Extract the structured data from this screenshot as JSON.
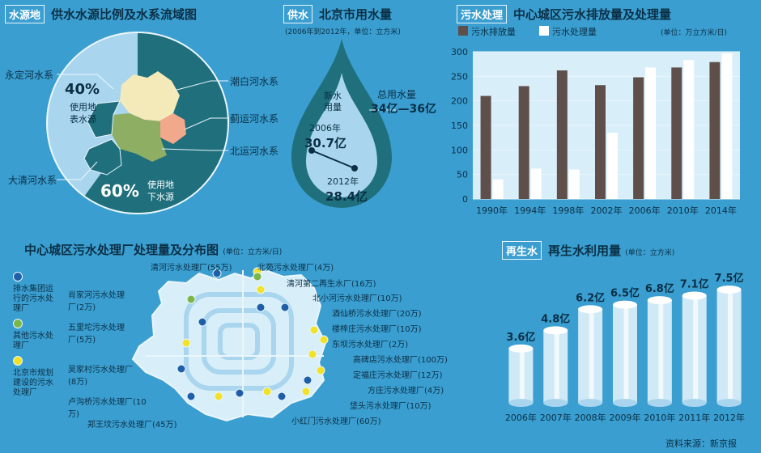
{
  "water_source": {
    "tag": "水源地",
    "title": "供水水源比例及水系流域图",
    "surface": {
      "percent": "40%",
      "label_line1": "使用地",
      "label_line2": "表水源"
    },
    "ground": {
      "percent": "60%",
      "label_line1": "使用地",
      "label_line2": "下水源"
    },
    "rivers": [
      "永定河水系",
      "潮白河水系",
      "蓟运河水系",
      "北运河水系",
      "大清河水系"
    ]
  },
  "water_use": {
    "tag": "供水",
    "title": "北京市用水量",
    "subtitle": "(2006年到2012年，单位：立方米)",
    "new_water_line1": "新水",
    "new_water_line2": "用量",
    "total_label": "总用水量",
    "total_value": "34亿—36亿",
    "points": [
      {
        "year": "2006年",
        "value": "30.7亿"
      },
      {
        "year": "2012年",
        "value": "28.4亿"
      }
    ]
  },
  "sewage": {
    "tag": "污水处理",
    "title": "中心城区污水排放量及处理量",
    "unit": "(单位：万立方米/日)",
    "legend_discharge": "污水排放量",
    "legend_treated": "污水处理量",
    "color_discharge": "#5e4f4a",
    "color_treated": "#ffffff"
  },
  "plants": {
    "title": "中心城区污水处理厂处理量及分布图",
    "unit": "(单位：立方米/日)",
    "legend": [
      {
        "text": "排水集团运行的污水处理厂",
        "color": "#1f5fa8"
      },
      {
        "text": "其他污水处理厂",
        "color": "#7ab648"
      },
      {
        "text": "北京市规划建设的污水处理厂",
        "color": "#f2e227"
      }
    ],
    "left_labels": [
      "肖家河污水处理厂(2万)",
      "五里坨污水处理厂(5万)",
      "吴家村污水处理厂(8万)",
      "卢沟桥污水处理厂(10万)",
      "郑王坟污水处理厂(45万)"
    ],
    "top_labels": [
      "清河污水处理厂(55万)",
      "北苑污水处理厂(4万)",
      "清河第二再生水厂(16万)"
    ],
    "right_labels": [
      "北小河污水处理厂(10万)",
      "酒仙桥污水处理厂(20万)",
      "楼梓庄污水处理厂(10万)",
      "东坝污水处理厂(2万)",
      "高碑店污水处理厂(100万)",
      "定福庄污水处理厂(12万)",
      "方庄污水处理厂(4万)",
      "垡头污水处理厂(10万)",
      "小红门污水处理厂(60万)"
    ]
  },
  "recycled": {
    "tag": "再生水",
    "title": "再生水利用量",
    "unit": "(单位：立方米)"
  },
  "source_note": "资料来源：新京报",
  "chart_data": [
    {
      "type": "pie",
      "title": "供水水源比例及水系流域图",
      "categories": [
        "使用地表水源",
        "使用地下水源"
      ],
      "values": [
        40,
        60
      ]
    },
    {
      "type": "bar",
      "title": "中心城区污水排放量及处理量",
      "categories": [
        "1990年",
        "1994年",
        "1998年",
        "2002年",
        "2006年",
        "2010年",
        "2014年"
      ],
      "series": [
        {
          "name": "污水排放量",
          "values": [
            210,
            230,
            262,
            232,
            248,
            268,
            279
          ]
        },
        {
          "name": "污水处理量",
          "values": [
            40,
            62,
            60,
            135,
            268,
            283,
            297
          ]
        }
      ],
      "ylim": [
        0,
        300
      ],
      "yticks": [
        0,
        50,
        100,
        150,
        200,
        250,
        300
      ],
      "grid": true
    },
    {
      "type": "bar",
      "title": "再生水利用量",
      "categories": [
        "2006年",
        "2007年",
        "2008年",
        "2009年",
        "2010年",
        "2011年",
        "2012年"
      ],
      "values": [
        3.6,
        4.8,
        6.2,
        6.5,
        6.8,
        7.1,
        7.5
      ],
      "value_labels": [
        "3.6亿",
        "4.8亿",
        "6.2亿",
        "6.5亿",
        "6.8亿",
        "7.1亿",
        "7.5亿"
      ]
    }
  ]
}
